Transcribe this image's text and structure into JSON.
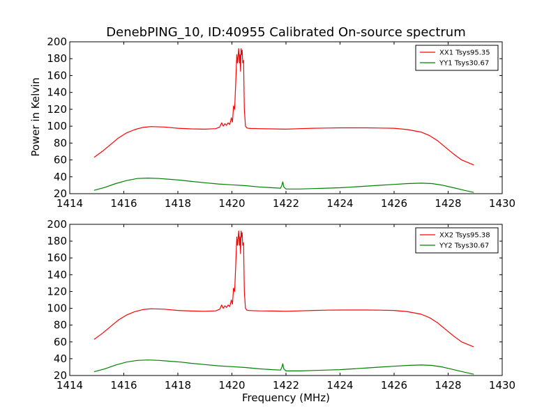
{
  "figure": {
    "title": "DenebPING_10, ID:40955 Calibrated On-source spectrum",
    "ylabel": "Power in Kelvin",
    "xlabel": "Frequency (MHz)"
  },
  "chart_data": [
    {
      "type": "line",
      "title": "DenebPING_10, ID:40955 Calibrated On-source spectrum",
      "xlabel": "",
      "ylabel": "Power in Kelvin",
      "xlim": [
        1414,
        1430
      ],
      "ylim": [
        20,
        200
      ],
      "xticks": [
        1414,
        1416,
        1418,
        1420,
        1422,
        1424,
        1426,
        1428,
        1430
      ],
      "yticks": [
        20,
        40,
        60,
        80,
        100,
        120,
        140,
        160,
        180,
        200
      ],
      "grid": false,
      "legend_position": "top-right",
      "series": [
        {
          "name": "XX1 Tsys95.35",
          "color": "#ff0000",
          "x": [
            1414.9,
            1415.2,
            1415.5,
            1415.8,
            1416.1,
            1416.4,
            1416.7,
            1417.0,
            1417.5,
            1418.0,
            1418.5,
            1419.0,
            1419.4,
            1419.55,
            1419.62,
            1419.68,
            1419.74,
            1419.8,
            1419.86,
            1419.92,
            1419.98,
            1420.02,
            1420.06,
            1420.1,
            1420.14,
            1420.18,
            1420.2,
            1420.22,
            1420.25,
            1420.28,
            1420.3,
            1420.32,
            1420.34,
            1420.36,
            1420.38,
            1420.4,
            1420.43,
            1420.46,
            1420.5,
            1420.55,
            1420.6,
            1420.7,
            1421.0,
            1421.5,
            1422.0,
            1422.5,
            1423.0,
            1423.5,
            1424.0,
            1424.5,
            1425.0,
            1425.5,
            1426.0,
            1426.5,
            1427.0,
            1427.3,
            1427.6,
            1427.9,
            1428.2,
            1428.5,
            1428.8,
            1428.95
          ],
          "y": [
            63,
            70,
            78,
            86,
            92,
            96,
            98.5,
            99.5,
            99,
            97.5,
            96.8,
            96.5,
            97,
            99,
            104,
            100,
            103,
            101,
            104,
            102,
            110,
            105,
            124,
            120,
            150,
            185,
            175,
            180,
            192,
            175,
            185,
            165,
            192,
            185,
            190,
            175,
            178,
            120,
            100,
            98,
            97.5,
            97.3,
            97,
            96.8,
            96.5,
            97,
            97.5,
            97.8,
            98,
            98,
            98,
            97.8,
            97.5,
            96,
            93,
            89,
            83,
            75,
            67,
            60,
            56,
            54
          ]
        },
        {
          "name": "YY1 Tsys30.67",
          "color": "#008000",
          "x": [
            1414.9,
            1415.3,
            1415.7,
            1416.1,
            1416.5,
            1416.9,
            1417.3,
            1417.7,
            1418.1,
            1418.5,
            1419.0,
            1419.5,
            1420.0,
            1420.5,
            1421.0,
            1421.5,
            1421.8,
            1421.85,
            1421.88,
            1421.92,
            1422.0,
            1422.5,
            1423.0,
            1423.5,
            1424.0,
            1424.5,
            1425.0,
            1425.5,
            1426.0,
            1426.5,
            1427.0,
            1427.4,
            1427.8,
            1428.2,
            1428.6,
            1428.95
          ],
          "y": [
            24,
            27.5,
            32,
            35.5,
            38,
            38.5,
            38,
            37,
            36,
            34.5,
            33,
            31.5,
            30.5,
            29.5,
            28,
            27,
            26.5,
            30,
            34,
            28,
            25.5,
            25.5,
            26,
            26.5,
            27,
            28,
            29,
            30,
            31,
            32,
            32.5,
            32,
            30,
            27,
            24,
            21.5
          ]
        }
      ]
    },
    {
      "type": "line",
      "title": "",
      "xlabel": "Frequency (MHz)",
      "ylabel": "",
      "xlim": [
        1414,
        1430
      ],
      "ylim": [
        20,
        200
      ],
      "xticks": [
        1414,
        1416,
        1418,
        1420,
        1422,
        1424,
        1426,
        1428,
        1430
      ],
      "yticks": [
        20,
        40,
        60,
        80,
        100,
        120,
        140,
        160,
        180,
        200
      ],
      "grid": false,
      "legend_position": "top-right",
      "series": [
        {
          "name": "XX2 Tsys95.38",
          "color": "#ff0000",
          "x": [
            1414.9,
            1415.2,
            1415.5,
            1415.8,
            1416.1,
            1416.4,
            1416.7,
            1417.0,
            1417.5,
            1418.0,
            1418.5,
            1419.0,
            1419.4,
            1419.55,
            1419.62,
            1419.68,
            1419.74,
            1419.8,
            1419.86,
            1419.92,
            1419.98,
            1420.02,
            1420.06,
            1420.1,
            1420.14,
            1420.18,
            1420.2,
            1420.22,
            1420.25,
            1420.28,
            1420.3,
            1420.32,
            1420.34,
            1420.36,
            1420.38,
            1420.4,
            1420.43,
            1420.46,
            1420.5,
            1420.55,
            1420.6,
            1420.7,
            1421.0,
            1421.5,
            1422.0,
            1422.5,
            1423.0,
            1423.5,
            1424.0,
            1424.5,
            1425.0,
            1425.5,
            1426.0,
            1426.5,
            1427.0,
            1427.3,
            1427.6,
            1427.9,
            1428.2,
            1428.5,
            1428.8,
            1428.95
          ],
          "y": [
            63,
            70,
            78,
            86,
            92,
            96,
            98.5,
            99.5,
            99,
            97.5,
            96.8,
            96.5,
            97,
            99,
            104,
            100,
            103,
            101,
            104,
            102,
            110,
            105,
            124,
            120,
            150,
            185,
            175,
            180,
            192,
            175,
            185,
            165,
            192,
            185,
            190,
            175,
            178,
            120,
            100,
            98,
            97.5,
            97.3,
            97,
            96.8,
            96.5,
            97,
            97.5,
            97.8,
            98,
            98,
            98,
            97.8,
            97.5,
            96,
            93,
            89,
            83,
            75,
            67,
            60,
            56,
            54
          ]
        },
        {
          "name": "YY2 Tsys30.67",
          "color": "#008000",
          "x": [
            1414.9,
            1415.3,
            1415.7,
            1416.1,
            1416.5,
            1416.9,
            1417.3,
            1417.7,
            1418.1,
            1418.5,
            1419.0,
            1419.5,
            1420.0,
            1420.5,
            1421.0,
            1421.5,
            1421.8,
            1421.85,
            1421.88,
            1421.92,
            1422.0,
            1422.5,
            1423.0,
            1423.5,
            1424.0,
            1424.5,
            1425.0,
            1425.5,
            1426.0,
            1426.5,
            1427.0,
            1427.4,
            1427.8,
            1428.2,
            1428.6,
            1428.95
          ],
          "y": [
            24.5,
            28,
            32.5,
            36,
            38,
            38.5,
            38,
            37,
            36,
            34.5,
            33,
            31.5,
            30.5,
            29.5,
            28,
            27,
            26.5,
            30,
            34,
            28,
            25.5,
            25.5,
            26,
            26.5,
            27,
            28,
            29,
            30,
            31,
            32,
            32.5,
            32,
            30,
            27,
            24,
            21.5
          ]
        }
      ]
    }
  ]
}
